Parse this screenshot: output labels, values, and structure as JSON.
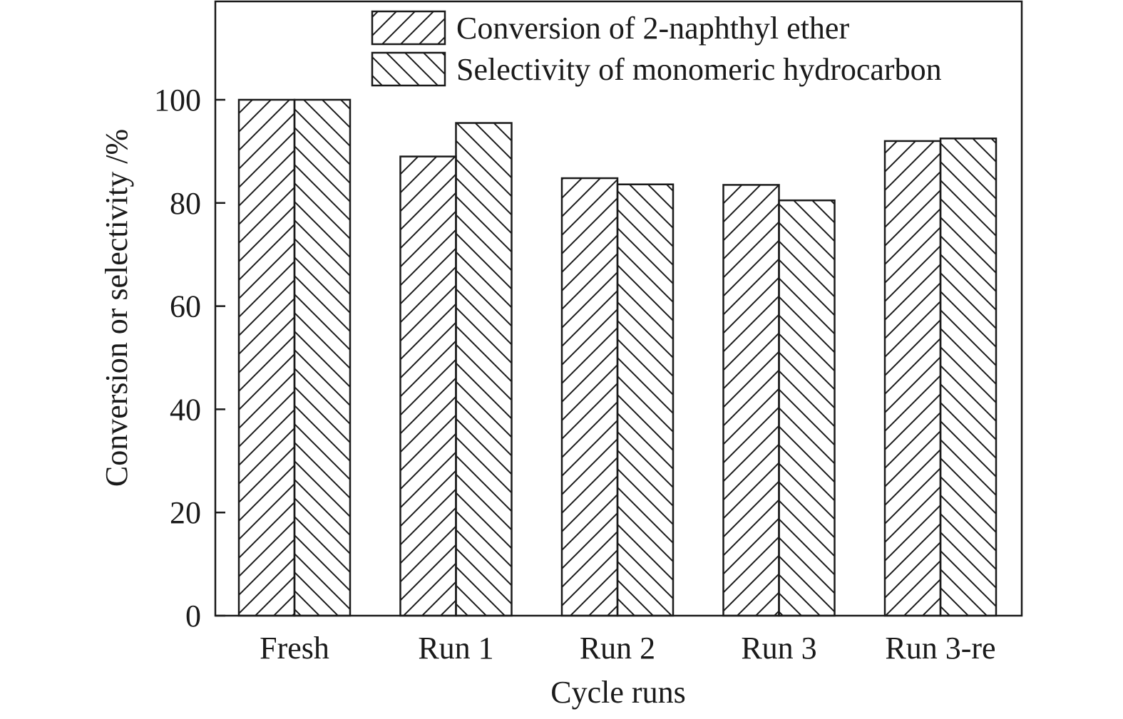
{
  "colors": {
    "ink": "#1a1a1a",
    "background": "#ffffff"
  },
  "chart_data": {
    "type": "bar",
    "xlabel": "Cycle runs",
    "ylabel": "Conversion or selectivity /%",
    "ylim": [
      0,
      100
    ],
    "yticks": [
      0,
      20,
      40,
      60,
      80,
      100
    ],
    "categories": [
      "Fresh",
      "Run 1",
      "Run 2",
      "Run 3",
      "Run 3-re"
    ],
    "series": [
      {
        "name": "Conversion of 2-naphthyl ether",
        "pattern": "forward-diagonal-hatch",
        "values": [
          100,
          89,
          84.8,
          83.5,
          92
        ]
      },
      {
        "name": "Selectivity of monomeric hydrocarbon",
        "pattern": "backward-diagonal-hatch",
        "values": [
          100,
          95.5,
          83.6,
          80.5,
          92.5
        ]
      }
    ],
    "legend": {
      "position": "top-right"
    },
    "grid": false
  }
}
